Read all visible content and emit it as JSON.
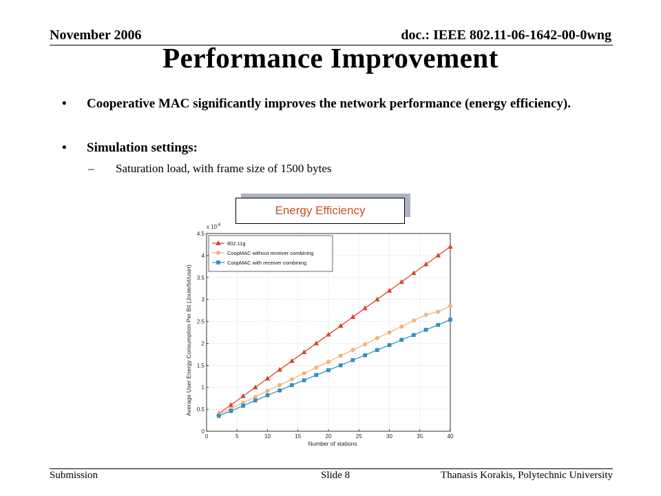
{
  "header": {
    "date": "November 2006",
    "doc": "doc.: IEEE 802.11-06-1642-00-0wng"
  },
  "slide": {
    "title": "Performance Improvement",
    "bullets": [
      "Cooperative MAC significantly improves the network performance (energy efficiency).",
      "Simulation settings:"
    ],
    "sub_bullet": "Saturation load, with frame size of 1500 bytes",
    "box_label": "Energy Efficiency"
  },
  "colors": {
    "series1": "#d6452b",
    "series2": "#f5b27a",
    "series3": "#2f95c8",
    "box_text": "#c8501f"
  },
  "chart_data": {
    "type": "line",
    "xlabel": "Number of stations",
    "ylabel": "Average User Energy Consumption Per Bit (Joule/bit/user)",
    "y_multiplier_label": "x 10",
    "y_multiplier_exp": "-6",
    "xlim": [
      0,
      40
    ],
    "ylim": [
      0,
      4.5
    ],
    "xticks": [
      0,
      5,
      10,
      15,
      20,
      25,
      30,
      35,
      40
    ],
    "yticks": [
      0,
      0.5,
      1,
      1.5,
      2,
      2.5,
      3,
      3.5,
      4,
      4.5
    ],
    "grid": true,
    "legend_position": "top-left",
    "x": [
      2,
      4,
      6,
      8,
      10,
      12,
      14,
      16,
      18,
      20,
      22,
      24,
      26,
      28,
      30,
      32,
      34,
      36,
      38,
      40
    ],
    "series": [
      {
        "name": "802.11g",
        "marker": "triangle",
        "values": [
          0.4,
          0.6,
          0.8,
          1.0,
          1.2,
          1.4,
          1.6,
          1.8,
          2.0,
          2.2,
          2.4,
          2.6,
          2.8,
          3.0,
          3.2,
          3.4,
          3.6,
          3.8,
          4.0,
          4.2
        ]
      },
      {
        "name": "CoopMAC without receiver combining",
        "marker": "circle",
        "values": [
          0.38,
          0.51,
          0.65,
          0.78,
          0.92,
          1.05,
          1.18,
          1.32,
          1.45,
          1.58,
          1.72,
          1.85,
          1.98,
          2.12,
          2.25,
          2.38,
          2.52,
          2.65,
          2.72,
          2.85
        ]
      },
      {
        "name": "CoopMAC with receiver combining",
        "marker": "square",
        "values": [
          0.35,
          0.46,
          0.58,
          0.7,
          0.82,
          0.93,
          1.05,
          1.16,
          1.28,
          1.39,
          1.5,
          1.62,
          1.73,
          1.85,
          1.96,
          2.08,
          2.19,
          2.31,
          2.42,
          2.54
        ]
      }
    ]
  },
  "footer": {
    "left": "Submission",
    "center": "Slide 8",
    "right": "Thanasis Korakis, Polytechnic University"
  }
}
